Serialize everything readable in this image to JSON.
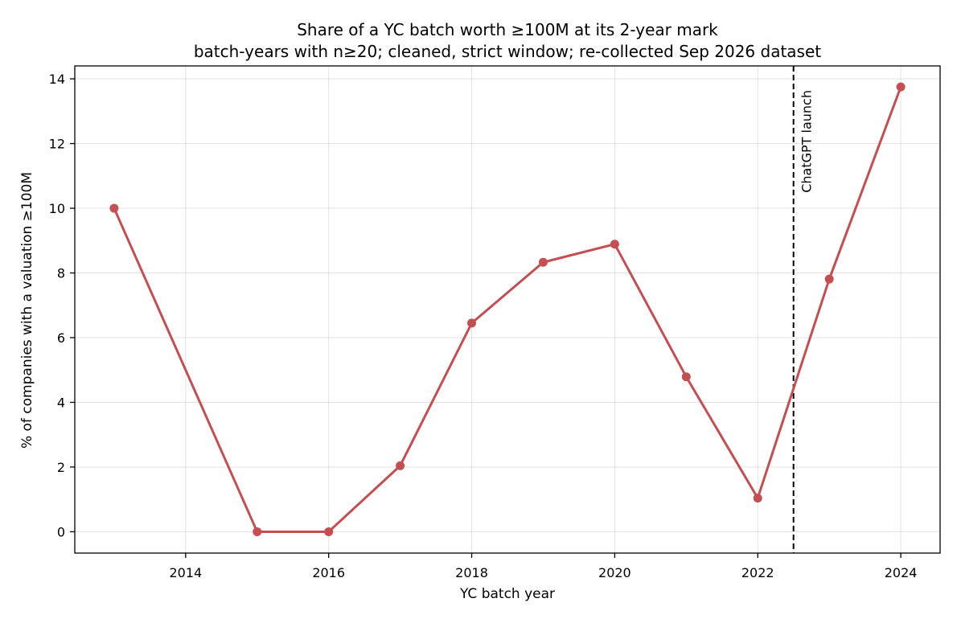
{
  "chart_data": {
    "type": "line",
    "title": "Share of a YC batch worth ≥100M at its 2-year mark",
    "subtitle": "batch-years with n≥20; cleaned, strict window; re-collected Sep 2026 dataset",
    "xlabel": "YC batch year",
    "ylabel": "% of companies with a valuation ≥100M",
    "x": [
      2013,
      2015,
      2016,
      2017,
      2018,
      2019,
      2020,
      2021,
      2022,
      2023,
      2024
    ],
    "series": [
      {
        "values": [
          10.0,
          0.0,
          0.0,
          2.04,
          6.45,
          8.33,
          8.89,
          4.79,
          1.04,
          7.81,
          13.75
        ],
        "color": "#c44e52"
      }
    ],
    "xlim": [
      2012.45,
      2024.55
    ],
    "ylim": [
      -0.66,
      14.4
    ],
    "xticks": [
      2014,
      2016,
      2018,
      2020,
      2022,
      2024
    ],
    "xtick_labels": [
      "2014",
      "2016",
      "2018",
      "2020",
      "2022",
      "2024"
    ],
    "yticks": [
      0,
      2,
      4,
      6,
      8,
      10,
      12,
      14
    ],
    "ytick_labels": [
      "0",
      "2",
      "4",
      "6",
      "8",
      "10",
      "12",
      "14"
    ],
    "grid": true,
    "annotations": [
      {
        "type": "vline",
        "x": 2022.5,
        "label": "ChatGPT launch",
        "style": "dashed",
        "color": "#000000"
      }
    ]
  }
}
